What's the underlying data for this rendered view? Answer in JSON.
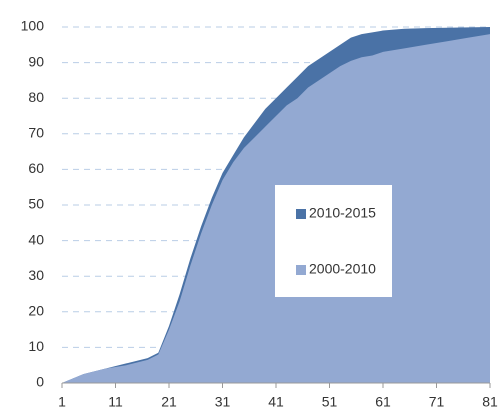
{
  "chart_data": {
    "type": "area",
    "x": [
      1,
      5,
      9,
      13,
      17,
      19,
      21,
      23,
      25,
      27,
      29,
      31,
      33,
      35,
      37,
      39,
      41,
      43,
      45,
      47,
      49,
      51,
      53,
      55,
      57,
      59,
      61,
      65,
      69,
      73,
      77,
      81
    ],
    "series": [
      {
        "name": "2010-2015",
        "color": "#4a72a6",
        "values": [
          0,
          2.5,
          4,
          5.5,
          7,
          8.5,
          16,
          25,
          35,
          44,
          52,
          59,
          64,
          69,
          73,
          77,
          80,
          83,
          86,
          89,
          91,
          93,
          95,
          97,
          98,
          98.5,
          99,
          99.5,
          99.7,
          99.8,
          99.9,
          100
        ]
      },
      {
        "name": "2000-2010",
        "color": "#93a9d2",
        "values": [
          0,
          2.5,
          4,
          5,
          6.5,
          8,
          15,
          23,
          33,
          42,
          50,
          57,
          62,
          66,
          69,
          72,
          75,
          78,
          80,
          83,
          85,
          87,
          89,
          90.5,
          91.5,
          92,
          93,
          94,
          95,
          96,
          97,
          98
        ]
      }
    ],
    "xlim": [
      1,
      81
    ],
    "xticks": [
      1,
      11,
      21,
      31,
      41,
      51,
      61,
      71,
      81
    ],
    "ylim": [
      0,
      100
    ],
    "yticks": [
      0,
      10,
      20,
      30,
      40,
      50,
      60,
      70,
      80,
      90,
      100
    ],
    "grid": true
  }
}
